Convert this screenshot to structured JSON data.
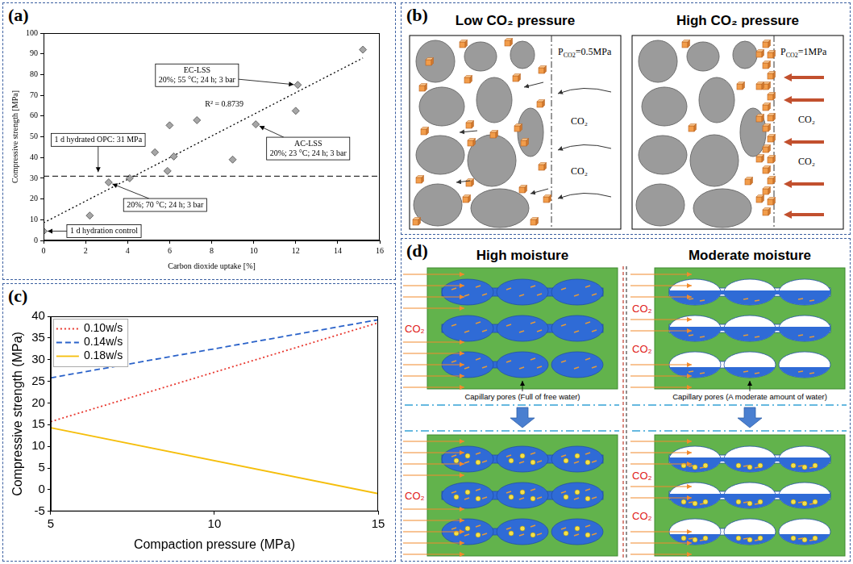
{
  "chart_data": [
    {
      "panel": "(a)",
      "type": "scatter",
      "x_label": "Carbon dioxide uptake [%]",
      "y_label": "Compressive strength [MPa]",
      "x": [
        0,
        2.2,
        3.1,
        4.1,
        5.3,
        5.9,
        6.0,
        6.2,
        7.3,
        9.0,
        10.1,
        12.0,
        12.1,
        15.2
      ],
      "values": [
        4.5,
        12,
        28,
        30,
        42.5,
        33.5,
        55.5,
        40.5,
        58,
        39,
        56,
        62.5,
        75,
        92
      ],
      "color": "#a6a6a6",
      "marker": "diamond",
      "trend_line": {
        "x": [
          0,
          15.2
        ],
        "values": [
          8.5,
          88
        ],
        "color": "#000000",
        "line_style": "dotted"
      },
      "hlines": [
        {
          "value": 31,
          "color": "#000000",
          "line_style": "dashed"
        }
      ],
      "annotations": [
        {
          "text": [
            "1 d hydration control"
          ],
          "x": 0,
          "y": 4.5
        },
        {
          "text": [
            "1 d hydrated OPC: 31 MPa"
          ],
          "x": 2.6,
          "y": 31
        },
        {
          "text": [
            "20%; 70 °C; 24 h; 3 bar"
          ],
          "x": 3.1,
          "y": 28
        },
        {
          "text": [
            "AC-LSS",
            "20%; 23 °C; 24 h; 3 bar"
          ],
          "x": 10.1,
          "y": 56
        },
        {
          "text": [
            "EC-LSS",
            "20%; 55 °C; 24 h; 3 bar"
          ],
          "x": 12.1,
          "y": 75
        },
        {
          "text": [
            "R² = 0.8739"
          ],
          "x": 8.6,
          "y": 65.5
        }
      ],
      "xlim": [
        0,
        16
      ],
      "xticks": [
        0,
        2,
        4,
        6,
        8,
        10,
        12,
        14,
        16
      ],
      "ylim": [
        0,
        100
      ],
      "yticks": [
        0,
        10,
        20,
        30,
        40,
        50,
        60,
        70,
        80,
        90,
        100
      ],
      "grid": false
    },
    {
      "panel": "(c)",
      "type": "line",
      "x_label": "Compaction pressure (MPa)",
      "y_label": "Compressive strength (MPa)",
      "x": [
        5,
        15
      ],
      "series": [
        {
          "name": "0.10w/s",
          "color": "#e8382f",
          "line_style": "dotted",
          "values": [
            15.7,
            38.5
          ]
        },
        {
          "name": "0.14w/s",
          "color": "#2a62c9",
          "line_style": "dashed",
          "values": [
            25.8,
            39.2
          ]
        },
        {
          "name": "0.18w/s",
          "color": "#f5be0b",
          "line_style": "solid",
          "values": [
            14.3,
            -0.9
          ]
        }
      ],
      "xlim": [
        5,
        15
      ],
      "xticks": [
        5,
        10,
        15
      ],
      "ylim": [
        -5,
        40
      ],
      "yticks": [
        -5,
        0,
        5,
        10,
        15,
        20,
        25,
        30,
        35,
        40
      ],
      "legend": "upper left",
      "grid": false
    }
  ],
  "diagrams": {
    "b": {
      "panel": "(b)",
      "sides": [
        {
          "title": "Low CO₂ pressure",
          "pressure": {
            "symbol": "P",
            "subscript": "CO2",
            "value": "=0.5MPa"
          },
          "arrow_labels": [
            "CO₂",
            "CO₂"
          ]
        },
        {
          "title": "High CO₂ pressure",
          "pressure": {
            "symbol": "P",
            "subscript": "CO2",
            "value": "=1MPa"
          },
          "arrow_labels": [
            "CO₂",
            "CO₂"
          ]
        }
      ]
    },
    "d": {
      "panel": "(d)",
      "sides": [
        {
          "title": "High moisture",
          "caption": "Capillary pores (Full of free water)",
          "labels_before": [
            "CO₂"
          ],
          "labels_after": [
            "CO₂"
          ]
        },
        {
          "title": "Moderate moisture",
          "caption": "Capillary pores (A moderate amount of water)",
          "labels_before": [
            "CO₂",
            "CO₂"
          ],
          "labels_after": [
            "CO₂",
            "CO₂"
          ]
        }
      ]
    }
  }
}
